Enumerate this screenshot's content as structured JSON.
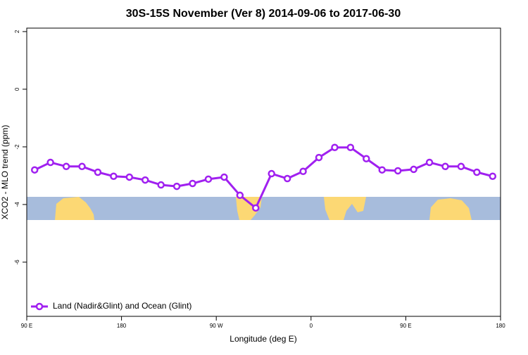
{
  "chart_data": {
    "type": "line",
    "title": "30S-15S November (Ver 8)   2014-09-06 to 2017-06-30",
    "x_label": "Longitude (deg E)",
    "y_label": "XCO2 - MLO trend (ppm)",
    "x": [
      97.5,
      112.5,
      127.5,
      142.5,
      157.5,
      172.5,
      187.5,
      202.5,
      217.5,
      232.5,
      247.5,
      262.5,
      277.5,
      292.5,
      307.5,
      322.5,
      337.5,
      352.5,
      367.5,
      382.5,
      397.5,
      412.5,
      427.5,
      442.5,
      457.5,
      472.5,
      487.5,
      502.5,
      517.5,
      532.5
    ],
    "series": [
      {
        "name": "Land (Nadir&Glint) and Ocean (Glint)",
        "color": "#a020f0",
        "values": [
          -2.8,
          -2.54,
          -2.68,
          -2.68,
          -2.88,
          -3.02,
          -3.05,
          -3.15,
          -3.32,
          -3.37,
          -3.27,
          -3.12,
          -3.05,
          -3.68,
          -4.12,
          -2.93,
          -3.1,
          -2.85,
          -2.37,
          -2.02,
          -2.02,
          -2.41,
          -2.8,
          -2.83,
          -2.78,
          -2.54,
          -2.68,
          -2.68,
          -2.88,
          -3.02
        ]
      }
    ],
    "xlim": [
      90,
      540
    ],
    "xticks": [
      {
        "value": 90,
        "label": "90 E"
      },
      {
        "value": 180,
        "label": "180"
      },
      {
        "value": 270,
        "label": "90 W"
      },
      {
        "value": 360,
        "label": "0"
      },
      {
        "value": 450,
        "label": "90 E"
      },
      {
        "value": 540,
        "label": "180"
      }
    ],
    "ylim": [
      -7.88,
      2.12
    ],
    "yticks": [
      -6,
      -4,
      -2,
      0,
      2
    ],
    "legend": "bottom-left"
  }
}
